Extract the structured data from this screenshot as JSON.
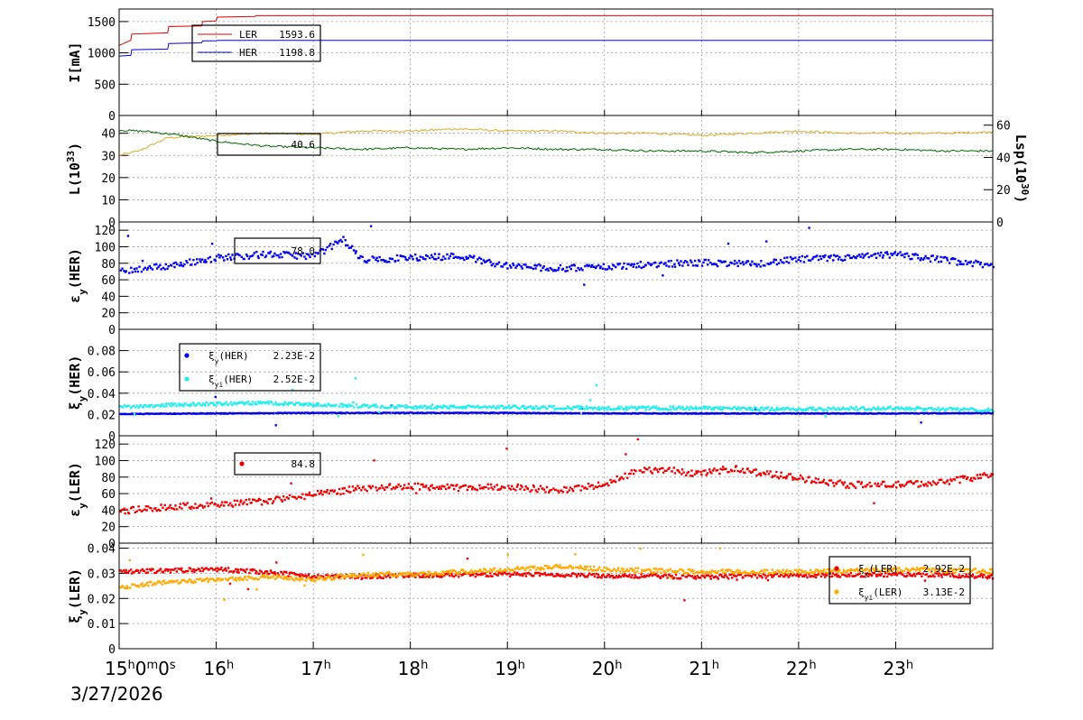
{
  "colors": {
    "ler": "#dd0000",
    "her": "#0000dd",
    "lum": "#ddaa22",
    "lsp": "#006600",
    "xi_her": "#0000ee",
    "xi_her_i": "#22eeee",
    "xi_ler": "#ee0000",
    "xi_ler_i": "#ffaa00"
  },
  "x_axis": {
    "start_label_h": "15",
    "start_label_m": "0",
    "start_label_s": "0",
    "hour_labels": [
      "16",
      "17",
      "18",
      "19",
      "20",
      "21",
      "22",
      "23"
    ],
    "unit_h": "h",
    "unit_m": "m",
    "unit_s": "s",
    "date": "3/27/2026",
    "range_hours": [
      15,
      24
    ]
  },
  "chart_data": [
    {
      "type": "line",
      "ylabel": "I[mA]",
      "ylim": [
        0,
        1700
      ],
      "yticks": [
        "0",
        "500",
        "1000",
        "1500"
      ],
      "grid": true,
      "legend": {
        "entries": [
          {
            "label": "LER",
            "value": "1593.6"
          },
          {
            "label": "HER",
            "value": "1198.8"
          }
        ]
      },
      "series": [
        {
          "name": "LER",
          "x": [
            15.0,
            15.12,
            15.13,
            15.5,
            15.51,
            15.85,
            15.86,
            16.0,
            16.01,
            16.4,
            16.41,
            24.0
          ],
          "y": [
            1120,
            1200,
            1300,
            1320,
            1420,
            1430,
            1500,
            1510,
            1570,
            1580,
            1593.6,
            1593.6
          ]
        },
        {
          "name": "HER",
          "x": [
            15.0,
            15.12,
            15.13,
            15.5,
            15.51,
            15.85,
            15.86,
            16.0,
            16.01,
            24.0
          ],
          "y": [
            950,
            960,
            1050,
            1060,
            1150,
            1160,
            1190,
            1195,
            1198.8,
            1198.8
          ]
        }
      ]
    },
    {
      "type": "line",
      "ylabel": "L(10",
      "ylabel_sup": "33",
      "ylabel_end": ")",
      "ylim": [
        0,
        48
      ],
      "yticks": [
        "0",
        "10",
        "20",
        "30",
        "40"
      ],
      "y2label": "Lsp(10",
      "y2label_sup": "30",
      "y2label_end": ")",
      "y2lim": [
        0,
        66
      ],
      "y2ticks": [
        "0",
        "20",
        "40",
        "60"
      ],
      "grid": true,
      "legend": {
        "entries": [
          {
            "label": "",
            "value": "40.6"
          }
        ]
      },
      "series": [
        {
          "name": "",
          "x": [
            15.0,
            15.2,
            15.5,
            16.0,
            16.5,
            17.0,
            17.5,
            18.0,
            18.5,
            19.0,
            19.5,
            20.0,
            20.5,
            21.0,
            21.5,
            22.0,
            22.5,
            23.0,
            23.5,
            24.0
          ],
          "y": [
            30,
            32,
            38,
            39,
            40,
            39.5,
            41,
            41,
            42,
            41,
            41,
            40,
            40,
            39,
            40,
            41,
            40,
            40,
            40,
            40.6
          ]
        },
        {
          "name": "",
          "axis": "right",
          "x": [
            15.0,
            15.3,
            15.6,
            16.0,
            16.5,
            17.0,
            17.5,
            18.0,
            18.5,
            19.0,
            19.5,
            20.0,
            20.5,
            21.0,
            21.5,
            22.0,
            22.5,
            23.0,
            23.5,
            24.0
          ],
          "y": [
            57,
            56,
            54,
            50,
            47,
            46,
            45,
            46,
            45,
            46,
            45,
            45,
            44,
            44,
            43,
            44,
            45,
            45,
            44,
            44
          ]
        }
      ]
    },
    {
      "type": "scatter",
      "ylabel": "εy(HER)",
      "ylabel_main": "ε",
      "ylabel_sub": "y",
      "ylabel_rest": "(HER)",
      "ylim": [
        0,
        130
      ],
      "yticks": [
        "0",
        "20",
        "40",
        "60",
        "80",
        "100",
        "120"
      ],
      "grid": true,
      "legend": {
        "entries": [
          {
            "label": "",
            "value": "78.0"
          }
        ]
      },
      "series": [
        {
          "name": "",
          "x": [
            15.0,
            15.5,
            16.0,
            16.5,
            17.0,
            17.3,
            17.5,
            18.0,
            18.5,
            19.0,
            19.5,
            20.0,
            20.5,
            21.0,
            21.5,
            22.0,
            22.5,
            23.0,
            23.5,
            24.0
          ],
          "y": [
            72,
            78,
            88,
            92,
            90,
            110,
            85,
            88,
            90,
            78,
            75,
            77,
            80,
            82,
            80,
            86,
            88,
            92,
            85,
            78
          ]
        }
      ]
    },
    {
      "type": "scatter",
      "ylabel": "ξy(HER)",
      "ylabel_main": "ξ",
      "ylabel_sub": "y",
      "ylabel_rest": "(HER)",
      "ylim": [
        0,
        0.1
      ],
      "yticks": [
        "0",
        "0.02",
        "0.04",
        "0.06",
        "0.08"
      ],
      "grid": true,
      "legend": {
        "entries": [
          {
            "label": "ξ",
            "sub": "y",
            "rest": "(HER)",
            "value": "2.23E-2"
          },
          {
            "label": "ξ",
            "sub": "yi",
            "rest": "(HER)",
            "value": "2.52E-2"
          }
        ]
      },
      "series": [
        {
          "name": "ξy(HER)",
          "x": [
            15.0,
            16.0,
            17.0,
            18.0,
            19.0,
            20.0,
            21.0,
            22.0,
            23.0,
            24.0
          ],
          "y": [
            0.0215,
            0.022,
            0.0225,
            0.0225,
            0.0225,
            0.022,
            0.022,
            0.022,
            0.022,
            0.0223
          ]
        },
        {
          "name": "ξyi(HER)",
          "x": [
            15.0,
            15.5,
            16.0,
            16.5,
            17.0,
            17.5,
            18.0,
            19.0,
            20.0,
            21.0,
            22.0,
            23.0,
            24.0
          ],
          "y": [
            0.028,
            0.03,
            0.031,
            0.032,
            0.03,
            0.029,
            0.028,
            0.028,
            0.027,
            0.027,
            0.026,
            0.027,
            0.0252
          ]
        }
      ]
    },
    {
      "type": "scatter",
      "ylabel": "εy(LER)",
      "ylabel_main": "ε",
      "ylabel_sub": "y",
      "ylabel_rest": "(LER)",
      "ylim": [
        0,
        130
      ],
      "yticks": [
        "0",
        "20",
        "40",
        "60",
        "80",
        "100",
        "120"
      ],
      "grid": true,
      "legend": {
        "entries": [
          {
            "label": "",
            "value": "84.8"
          }
        ]
      },
      "series": [
        {
          "name": "",
          "x": [
            15.0,
            15.5,
            16.0,
            16.5,
            17.0,
            17.5,
            18.0,
            18.5,
            19.0,
            19.5,
            20.0,
            20.3,
            20.6,
            21.0,
            21.3,
            21.5,
            22.0,
            22.5,
            23.0,
            23.5,
            24.0
          ],
          "y": [
            40,
            45,
            48,
            52,
            60,
            68,
            70,
            68,
            70,
            65,
            72,
            88,
            90,
            85,
            92,
            88,
            80,
            72,
            72,
            75,
            84.8
          ]
        }
      ]
    },
    {
      "type": "scatter",
      "ylabel": "ξy(LER)",
      "ylabel_main": "ξ",
      "ylabel_sub": "y",
      "ylabel_rest": "(LER)",
      "ylim": [
        0,
        0.042
      ],
      "yticks": [
        "0",
        "0.01",
        "0.02",
        "0.03",
        "0.04"
      ],
      "grid": true,
      "legend": {
        "entries": [
          {
            "label": "ξ",
            "sub": "y",
            "rest": "(LER)",
            "value": "2.92E-2"
          },
          {
            "label": "ξ",
            "sub": "yi",
            "rest": "(LER)",
            "value": "3.13E-2"
          }
        ]
      },
      "series": [
        {
          "name": "ξy(LER)",
          "x": [
            15.0,
            15.5,
            16.0,
            16.5,
            17.0,
            18.0,
            19.0,
            20.0,
            21.0,
            22.0,
            23.0,
            24.0
          ],
          "y": [
            0.031,
            0.0315,
            0.032,
            0.031,
            0.029,
            0.0295,
            0.03,
            0.0295,
            0.029,
            0.0295,
            0.03,
            0.0292
          ]
        },
        {
          "name": "ξyi(LER)",
          "x": [
            15.0,
            15.5,
            16.0,
            16.5,
            17.0,
            17.5,
            18.0,
            19.0,
            19.5,
            20.0,
            21.0,
            22.0,
            23.0,
            24.0
          ],
          "y": [
            0.025,
            0.027,
            0.028,
            0.029,
            0.028,
            0.03,
            0.03,
            0.032,
            0.033,
            0.032,
            0.031,
            0.031,
            0.032,
            0.0313
          ]
        }
      ]
    }
  ]
}
